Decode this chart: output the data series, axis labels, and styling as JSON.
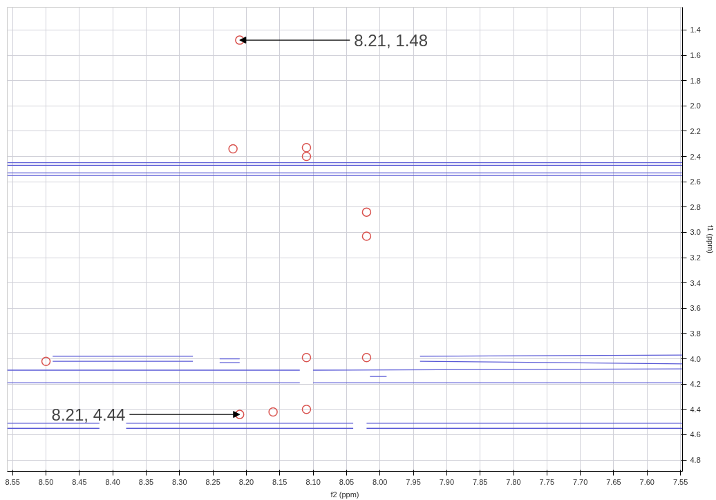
{
  "chart_data": {
    "type": "scatter",
    "xlabel": "f2 (ppm)",
    "ylabel": "f1 (ppm)",
    "xlim": [
      8.558,
      7.547
    ],
    "ylim": [
      4.89,
      1.22
    ],
    "xticks": [
      8.55,
      {
        "value": 8.5,
        "label": "8.50"
      },
      8.45,
      {
        "value": 8.4,
        "label": "8.40"
      },
      8.35,
      {
        "value": 8.3,
        "label": "8.30"
      },
      8.25,
      {
        "value": 8.2,
        "label": "8.20"
      },
      8.15,
      {
        "value": 8.1,
        "label": "8.10"
      },
      8.05,
      {
        "value": 8.0,
        "label": "8.00"
      },
      7.95,
      {
        "value": 7.9,
        "label": "7.90"
      },
      7.85,
      {
        "value": 7.8,
        "label": "7.80"
      },
      7.75,
      {
        "value": 7.7,
        "label": "7.70"
      },
      7.65,
      {
        "value": 7.6,
        "label": "7.60"
      },
      7.55
    ],
    "yticks": [
      1.4,
      1.6,
      1.8,
      {
        "value": 2.0,
        "label": "2.0"
      },
      2.2,
      2.4,
      2.6,
      2.8,
      {
        "value": 3.0,
        "label": "3.0"
      },
      3.2,
      3.4,
      3.6,
      3.8,
      {
        "value": 4.0,
        "label": "4.0"
      },
      4.2,
      4.4,
      4.6,
      4.8
    ],
    "grid": true,
    "tick_labels": [
      "x",
      "y"
    ],
    "series": [
      {
        "color": "#d9534f",
        "x": [
          8.21,
          8.22,
          8.11,
          8.11,
          8.02,
          8.02,
          8.5,
          8.11,
          8.02,
          8.21,
          8.16,
          8.11
        ],
        "values": [
          1.48,
          2.34,
          2.4,
          2.33,
          2.84,
          3.03,
          4.02,
          3.99,
          3.99,
          4.44,
          4.42,
          4.4
        ]
      },
      {
        "type": "line",
        "color": "#5a5ad6",
        "x": [
          8.558,
          7.547
        ],
        "values": [
          2.45,
          2.45
        ]
      },
      {
        "type": "line",
        "color": "#5a5ad6",
        "x": [
          8.558,
          7.547
        ],
        "values": [
          2.47,
          2.47
        ]
      },
      {
        "type": "line",
        "color": "#5a5ad6",
        "x": [
          8.558,
          7.547
        ],
        "values": [
          2.53,
          2.53
        ]
      },
      {
        "type": "line",
        "color": "#5a5ad6",
        "x": [
          8.558,
          7.547
        ],
        "values": [
          2.55,
          2.55
        ]
      },
      {
        "type": "line",
        "color": "#5a5ad6",
        "x": [
          8.49,
          8.28,
          8.26,
          8.24,
          8.21,
          8.0,
          7.94,
          7.547
        ],
        "values": [
          3.98,
          3.98,
          null,
          4.0,
          4.0,
          null,
          3.98,
          3.97
        ]
      },
      {
        "type": "line",
        "color": "#5a5ad6",
        "x": [
          8.49,
          8.28,
          8.26,
          8.24,
          8.21,
          8.0,
          7.94,
          7.547
        ],
        "values": [
          4.02,
          4.02,
          null,
          4.03,
          4.03,
          null,
          4.02,
          4.04
        ]
      },
      {
        "type": "line",
        "color": "#5a5ad6",
        "x": [
          8.558,
          8.12,
          8.11,
          8.1,
          7.547
        ],
        "values": [
          4.09,
          4.09,
          null,
          4.09,
          4.08
        ]
      },
      {
        "type": "line",
        "color": "#5a5ad6",
        "x": [
          8.558,
          8.12,
          8.11,
          8.1,
          8.02,
          7.547
        ],
        "values": [
          4.19,
          4.19,
          null,
          4.19,
          4.19,
          4.19
        ]
      },
      {
        "type": "line",
        "color": "#5a5ad6",
        "x": [
          8.015,
          7.99
        ],
        "values": [
          4.14,
          4.14
        ]
      },
      {
        "type": "line",
        "color": "#5a5ad6",
        "x": [
          8.558,
          8.42,
          8.4,
          8.38,
          8.04,
          8.03,
          8.02,
          7.547
        ],
        "values": [
          4.51,
          4.51,
          null,
          4.51,
          4.51,
          null,
          4.51,
          4.51
        ]
      },
      {
        "type": "line",
        "color": "#5a5ad6",
        "x": [
          8.558,
          8.42,
          8.4,
          8.38,
          8.04,
          8.03,
          8.02,
          7.547
        ],
        "values": [
          4.55,
          4.55,
          null,
          4.55,
          4.55,
          null,
          4.55,
          4.55
        ]
      }
    ],
    "annotations": [
      {
        "text": "8.21, 1.48",
        "x": 8.21,
        "y": 1.48
      },
      {
        "text": "8.21, 4.44",
        "x": 8.21,
        "y": 4.44
      }
    ]
  }
}
